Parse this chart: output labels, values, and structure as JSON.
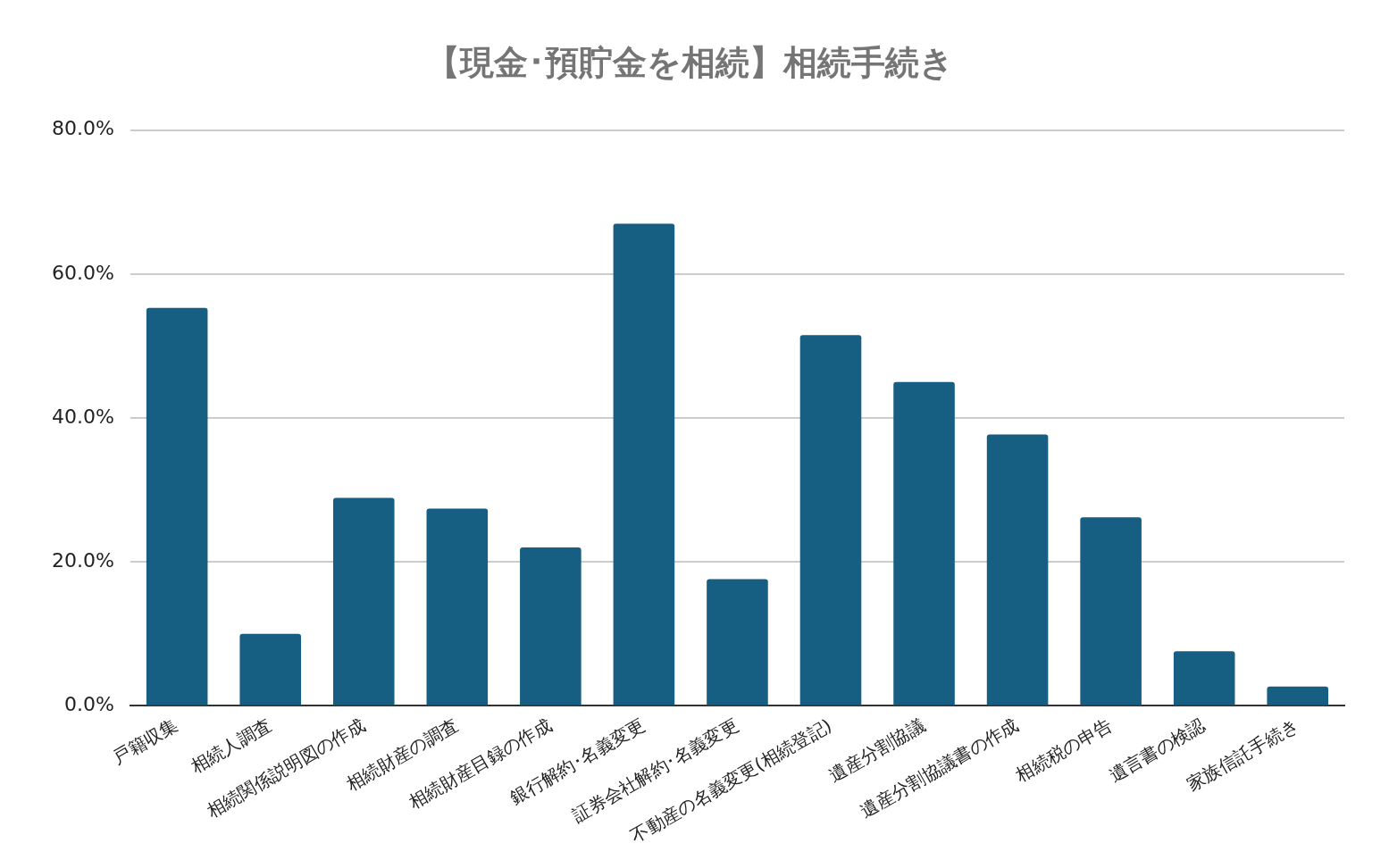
{
  "chart_data": {
    "type": "bar",
    "title": "【現金･預貯金を相続】相続手続き",
    "categories": [
      "戸籍収集",
      "相続人調査",
      "相続関係説明図の作成",
      "相続財産の調査",
      "相続財産目録の作成",
      "銀行解約･名義変更",
      "証券会社解約･名義変更",
      "不動産の名義変更(相続登記)",
      "遺産分割協議",
      "遺産分割協議書の作成",
      "相続税の申告",
      "遺言書の検認",
      "家族信託手続き"
    ],
    "values": [
      55.3,
      10.0,
      28.9,
      27.4,
      22.0,
      67.0,
      17.6,
      51.5,
      45.0,
      37.7,
      26.2,
      7.6,
      2.7
    ],
    "color": "#175f82",
    "ylim": [
      0,
      80
    ],
    "yticks": [
      {
        "value": 0,
        "label": "0.0%"
      },
      {
        "value": 20,
        "label": "20.0%"
      },
      {
        "value": 40,
        "label": "40.0%"
      },
      {
        "value": 60,
        "label": "60.0%"
      },
      {
        "value": 80,
        "label": "80.0%"
      }
    ],
    "grid": "y",
    "legend": false
  }
}
